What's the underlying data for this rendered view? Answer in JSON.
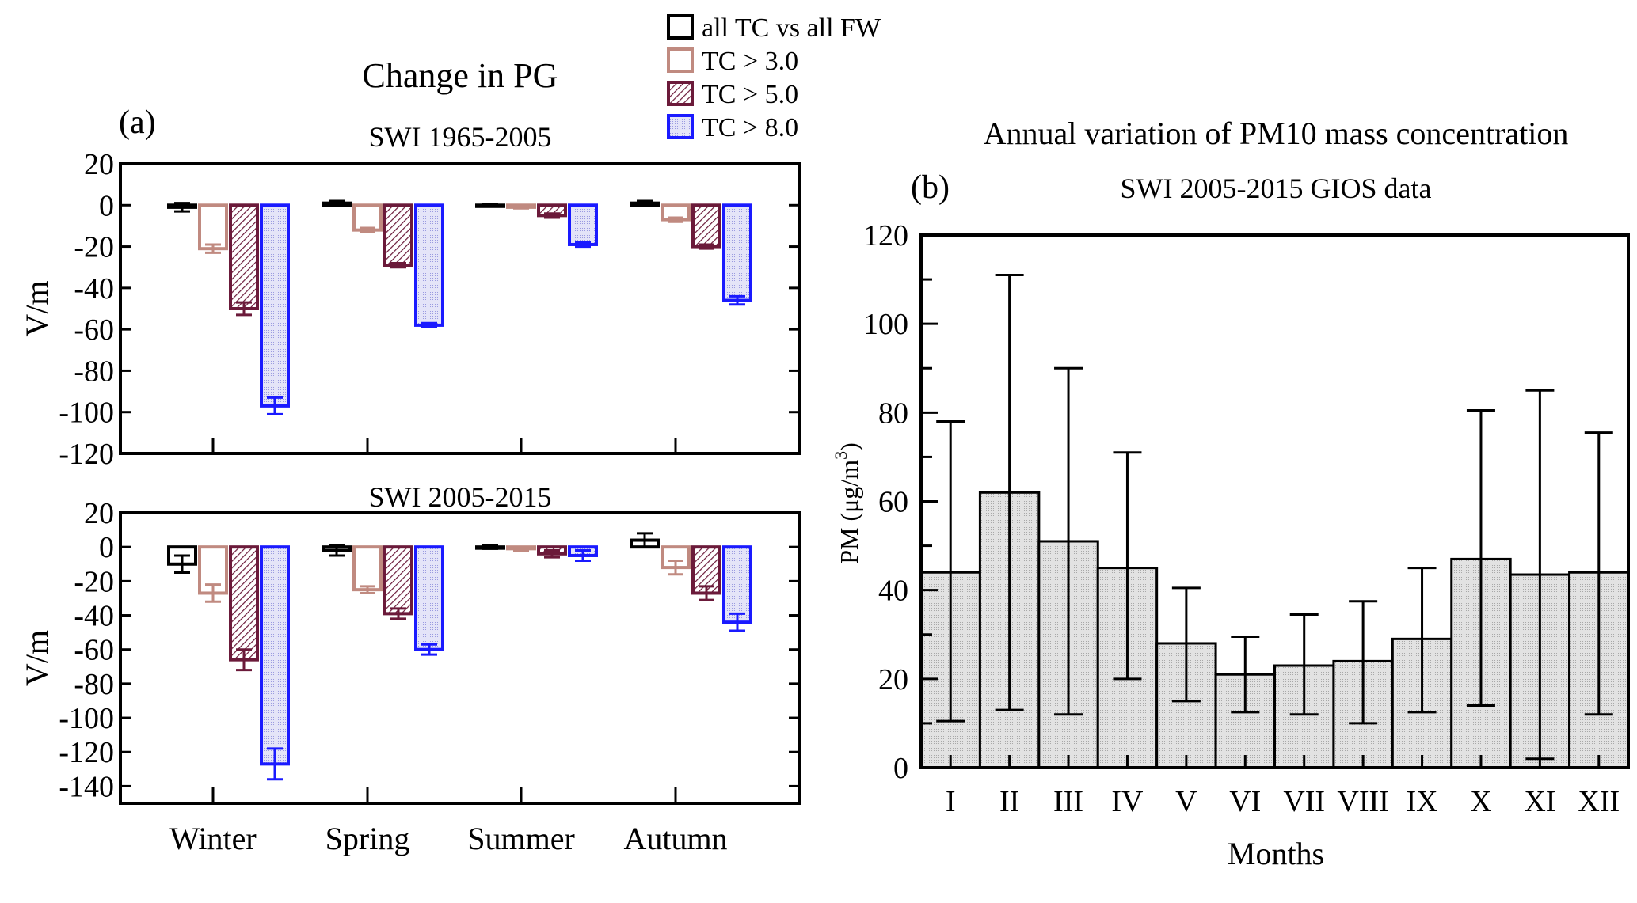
{
  "colors": {
    "all": "#000000",
    "tc3": "#c08a80",
    "tc5": "#6b1a3a",
    "tc8": "#1a1aff",
    "tc8_fill": "#d6d6f2",
    "pm_fill": "#dcdcdc"
  },
  "chart_data": [
    {
      "type": "bar",
      "panel_label": "(a)",
      "title": "Change in PG",
      "subtitle": "SWI 1965-2005",
      "ylabel": "V/m",
      "ylim": [
        -120,
        20
      ],
      "yticks": [
        20,
        0,
        -20,
        -40,
        -60,
        -80,
        -100,
        -120
      ],
      "categories": [
        "Winter",
        "Spring",
        "Summer",
        "Autumn"
      ],
      "series": [
        {
          "name": "all TC vs all FW",
          "values": [
            -1,
            1,
            0,
            1
          ],
          "errors": [
            2,
            1,
            0.5,
            1
          ]
        },
        {
          "name": "TC > 3.0",
          "values": [
            -21,
            -12,
            -1,
            -7
          ],
          "errors": [
            2,
            1,
            0.5,
            1
          ]
        },
        {
          "name": "TC > 5.0",
          "values": [
            -50,
            -29,
            -5,
            -20
          ],
          "errors": [
            3,
            1,
            1,
            1
          ]
        },
        {
          "name": "TC > 8.0",
          "values": [
            -97,
            -58,
            -19,
            -46
          ],
          "errors": [
            4,
            1,
            1,
            2
          ]
        }
      ]
    },
    {
      "type": "bar",
      "subtitle": "SWI 2005-2015",
      "ylabel": "V/m",
      "ylim": [
        -150,
        20
      ],
      "yticks": [
        20,
        0,
        -20,
        -40,
        -60,
        -80,
        -100,
        -120,
        -140
      ],
      "categories": [
        "Winter",
        "Spring",
        "Summer",
        "Autumn"
      ],
      "series": [
        {
          "name": "all TC vs all FW",
          "values": [
            -10,
            -2,
            0,
            4
          ],
          "errors": [
            5,
            3,
            1,
            4
          ]
        },
        {
          "name": "TC > 3.0",
          "values": [
            -27,
            -25,
            -1,
            -12
          ],
          "errors": [
            5,
            2,
            1,
            4
          ]
        },
        {
          "name": "TC > 5.0",
          "values": [
            -66,
            -39,
            -4,
            -27
          ],
          "errors": [
            6,
            3,
            2,
            4
          ]
        },
        {
          "name": "TC > 8.0",
          "values": [
            -127,
            -60,
            -5,
            -44
          ],
          "errors": [
            9,
            3,
            3,
            5
          ]
        }
      ]
    },
    {
      "type": "bar",
      "panel_label": "(b)",
      "title": "Annual variation of PM10 mass concentration",
      "subtitle": "SWI 2005-2015 GIOS data",
      "xlabel": "Months",
      "ylabel": "PM (μg/m",
      "ylabel_sup": "3",
      "ylabel_end": ")",
      "ylim": [
        0,
        120
      ],
      "yticks": [
        0,
        20,
        40,
        60,
        80,
        100,
        120
      ],
      "categories": [
        "I",
        "II",
        "III",
        "IV",
        "V",
        "VI",
        "VII",
        "VIII",
        "IX",
        "X",
        "XI",
        "XII"
      ],
      "values": [
        44,
        62,
        51,
        45,
        28,
        21,
        23,
        24,
        29,
        47,
        43.5,
        44
      ],
      "err_upper": [
        78,
        111,
        90,
        71,
        40.5,
        29.5,
        34.5,
        37.5,
        45,
        80.5,
        85,
        75.5
      ],
      "err_lower": [
        10.5,
        13,
        12,
        20,
        15,
        12.5,
        12,
        10,
        12.5,
        14,
        2,
        12
      ]
    }
  ]
}
